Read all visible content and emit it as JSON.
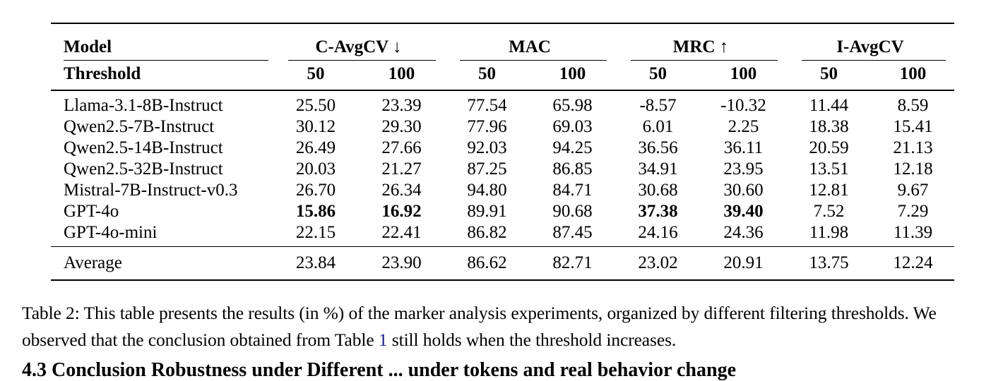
{
  "table": {
    "model_header": "Model",
    "threshold_header": "Threshold",
    "groups": [
      {
        "label": "C-AvgCV ↓",
        "thresholds": [
          "50",
          "100"
        ]
      },
      {
        "label": "MAC",
        "thresholds": [
          "50",
          "100"
        ]
      },
      {
        "label": "MRC ↑",
        "thresholds": [
          "50",
          "100"
        ]
      },
      {
        "label": "I-AvgCV",
        "thresholds": [
          "50",
          "100"
        ]
      }
    ],
    "rows": [
      {
        "model": "Llama-3.1-8B-Instruct",
        "values": [
          "25.50",
          "23.39",
          "77.54",
          "65.98",
          "-8.57",
          "-10.32",
          "11.44",
          "8.59"
        ]
      },
      {
        "model": "Qwen2.5-7B-Instruct",
        "values": [
          "30.12",
          "29.30",
          "77.96",
          "69.03",
          "6.01",
          "2.25",
          "18.38",
          "15.41"
        ]
      },
      {
        "model": "Qwen2.5-14B-Instruct",
        "values": [
          "26.49",
          "27.66",
          "92.03",
          "94.25",
          "36.56",
          "36.11",
          "20.59",
          "21.13"
        ]
      },
      {
        "model": "Qwen2.5-32B-Instruct",
        "values": [
          "20.03",
          "21.27",
          "87.25",
          "86.85",
          "34.91",
          "23.95",
          "13.51",
          "12.18"
        ]
      },
      {
        "model": "Mistral-7B-Instruct-v0.3",
        "values": [
          "26.70",
          "26.34",
          "94.80",
          "84.71",
          "30.68",
          "30.60",
          "12.81",
          "9.67"
        ]
      },
      {
        "model": "GPT-4o",
        "values": [
          "15.86",
          "16.92",
          "89.91",
          "90.68",
          "37.38",
          "39.40",
          "7.52",
          "7.29"
        ]
      },
      {
        "model": "GPT-4o-mini",
        "values": [
          "22.15",
          "22.41",
          "86.82",
          "87.45",
          "24.16",
          "24.36",
          "11.98",
          "11.39"
        ]
      }
    ],
    "average": {
      "model": "Average",
      "values": [
        "23.84",
        "23.90",
        "86.62",
        "82.71",
        "23.02",
        "20.91",
        "13.75",
        "12.24"
      ]
    }
  },
  "caption": {
    "before_ref": "Table 2: This table presents the results (in %) of the marker analysis experiments, organized by different filtering thresholds. We observed that the conclusion obtained from Table ",
    "ref": "1",
    "after_ref": " still holds when the threshold increases."
  },
  "next_heading": "4.3 Conclusion Robustness under Different ... under tokens and real behavior change"
}
